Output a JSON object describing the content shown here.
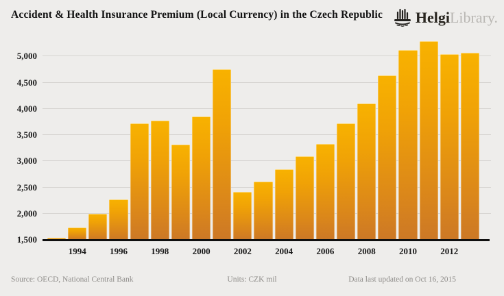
{
  "header": {
    "title": "Accident & Health Insurance Premium (Local Currency) in the Czech Republic",
    "logo": {
      "brand_primary": "Helgi",
      "brand_secondary": "Library."
    }
  },
  "chart_data": {
    "type": "bar",
    "title": "Accident & Health Insurance Premium (Local Currency) in the Czech Republic",
    "x": [
      1993,
      1994,
      1995,
      1996,
      1997,
      1998,
      1999,
      2000,
      2001,
      2002,
      2003,
      2004,
      2005,
      2006,
      2007,
      2008,
      2009,
      2010,
      2011,
      2012,
      2013
    ],
    "values": [
      1540,
      1740,
      2000,
      2270,
      3720,
      3770,
      3320,
      3860,
      4760,
      2420,
      2610,
      2850,
      3100,
      3330,
      3730,
      4100,
      4640,
      5120,
      5290,
      5050,
      5070
    ],
    "xlabel": "",
    "ylabel": "",
    "units": "CZK mil",
    "ylim": [
      1500,
      5320
    ],
    "yticks": [
      1500,
      2000,
      2500,
      3000,
      3500,
      4000,
      4500,
      5000
    ],
    "xticks": [
      1994,
      1996,
      1998,
      2000,
      2002,
      2004,
      2006,
      2008,
      2010,
      2012
    ],
    "grid": "horizontal",
    "legend": "none",
    "colors": {
      "bar_top": "#F8B200",
      "bar_bottom": "#CC7826",
      "background": "#EEEDEB",
      "gridline": "#D6D4D1",
      "axis": "#101010"
    }
  },
  "footer": {
    "source": "Source: OECD, National Central Bank",
    "units_label": "Units: CZK mil",
    "updated": "Data last updated on Oct 16, 2015"
  }
}
